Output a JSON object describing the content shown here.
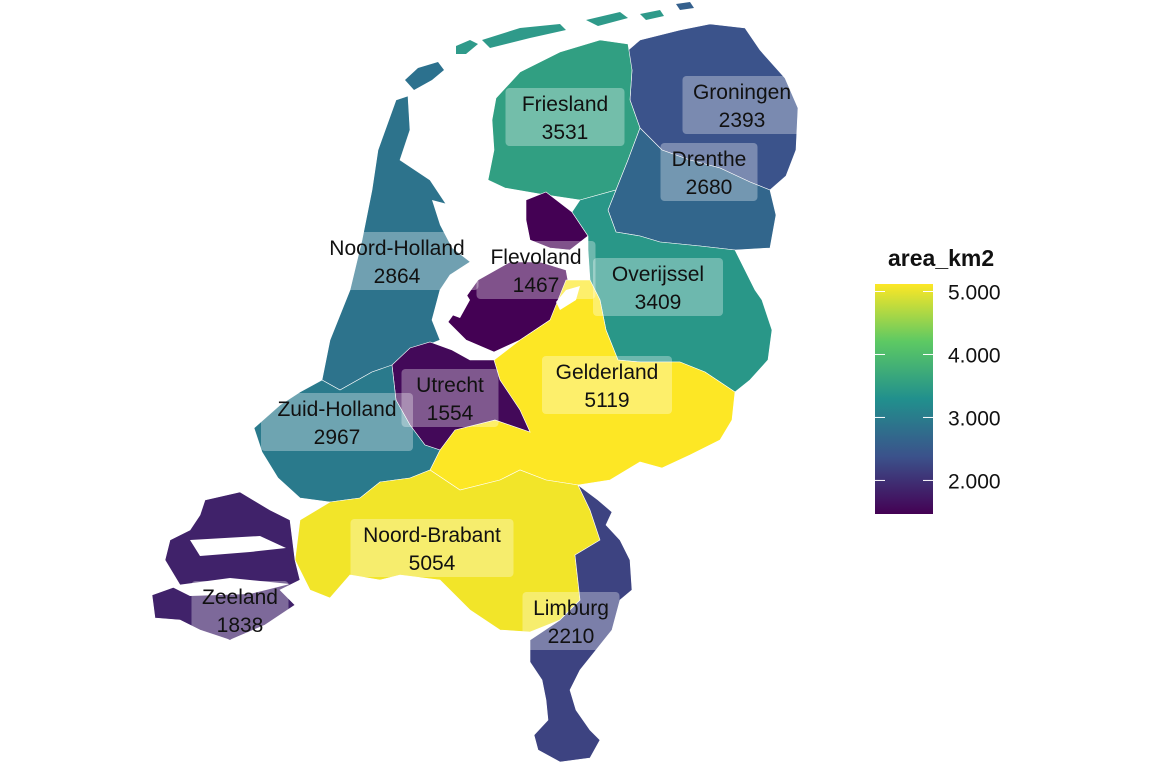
{
  "legend": {
    "title": "area_km2",
    "min": 1467,
    "max": 5119,
    "ticks": [
      {
        "value": 5000,
        "label": "5.000"
      },
      {
        "value": 4000,
        "label": "4.000"
      },
      {
        "value": 3000,
        "label": "3.000"
      },
      {
        "value": 2000,
        "label": "2.000"
      }
    ],
    "colormap": "viridis"
  },
  "provinces": [
    {
      "key": "groningen",
      "name": "Groningen",
      "value_label": "2393",
      "area_km2": 2393
    },
    {
      "key": "friesland",
      "name": "Friesland",
      "value_label": "3531",
      "area_km2": 3531
    },
    {
      "key": "drenthe",
      "name": "Drenthe",
      "value_label": "2680",
      "area_km2": 2680
    },
    {
      "key": "noord-holland",
      "name": "Noord-Holland",
      "value_label": "2864",
      "area_km2": 2864
    },
    {
      "key": "flevoland",
      "name": "Flevoland",
      "value_label": "1467",
      "area_km2": 1467
    },
    {
      "key": "overijssel",
      "name": "Overijssel",
      "value_label": "3409",
      "area_km2": 3409
    },
    {
      "key": "gelderland",
      "name": "Gelderland",
      "value_label": "5119",
      "area_km2": 5119
    },
    {
      "key": "utrecht",
      "name": "Utrecht",
      "value_label": "1554",
      "area_km2": 1554
    },
    {
      "key": "zuid-holland",
      "name": "Zuid-Holland",
      "value_label": "2967",
      "area_km2": 2967
    },
    {
      "key": "noord-brabant",
      "name": "Noord-Brabant",
      "value_label": "5054",
      "area_km2": 5054
    },
    {
      "key": "zeeland",
      "name": "Zeeland",
      "value_label": "1838",
      "area_km2": 1838
    },
    {
      "key": "limburg",
      "name": "Limburg",
      "value_label": "2210",
      "area_km2": 2210
    }
  ]
}
